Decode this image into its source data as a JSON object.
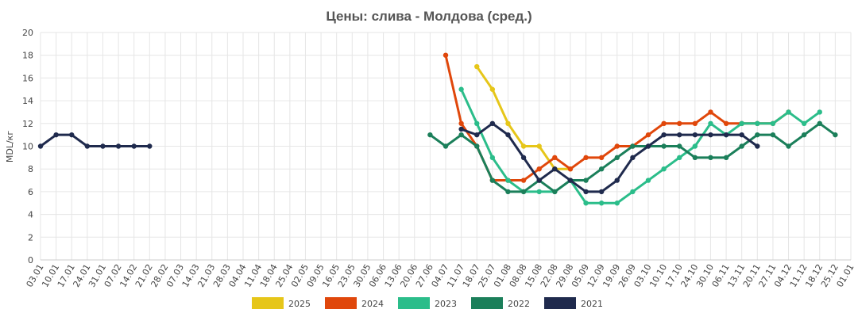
{
  "chart_data": {
    "type": "line",
    "title": "Цены: слива - Молдова (сред.)",
    "ylabel": "MDL/кг",
    "xlabel": "",
    "ylim": [
      0,
      20
    ],
    "y_ticks": [
      0,
      2,
      4,
      6,
      8,
      10,
      12,
      14,
      16,
      18,
      20
    ],
    "grid": true,
    "legend_position": "bottom",
    "x_ticks": [
      "03.01",
      "10.01",
      "17.01",
      "24.01",
      "31.01",
      "07.02",
      "14.02",
      "21.02",
      "28.02",
      "07.03",
      "14.03",
      "21.03",
      "28.03",
      "04.04",
      "11.04",
      "18.04",
      "25.04",
      "02.05",
      "09.05",
      "16.05",
      "23.05",
      "30.05",
      "06.06",
      "13.06",
      "20.06",
      "27.06",
      "04.07",
      "11.07",
      "18.07",
      "25.07",
      "01.08",
      "08.08",
      "15.08",
      "22.08",
      "29.08",
      "05.09",
      "12.09",
      "19.09",
      "26.09",
      "03.10",
      "10.10",
      "17.10",
      "24.10",
      "30.10",
      "06.11",
      "13.11",
      "20.11",
      "27.11",
      "04.12",
      "11.12",
      "18.12",
      "25.12",
      "01.01"
    ],
    "series": [
      {
        "name": "2025",
        "color": "#e6c619",
        "points": [
          [
            28,
            17
          ],
          [
            29,
            15
          ],
          [
            30,
            12
          ],
          [
            31,
            10
          ],
          [
            32,
            10
          ],
          [
            33,
            8
          ],
          [
            34,
            8
          ]
        ]
      },
      {
        "name": "2024",
        "color": "#e0470b",
        "points": [
          [
            26,
            18
          ],
          [
            27,
            12
          ],
          [
            28,
            10
          ],
          [
            29,
            7
          ],
          [
            30,
            7
          ],
          [
            31,
            7
          ],
          [
            32,
            8
          ],
          [
            33,
            9
          ],
          [
            34,
            8
          ],
          [
            35,
            9
          ],
          [
            36,
            9
          ],
          [
            37,
            10
          ],
          [
            38,
            10
          ],
          [
            39,
            11
          ],
          [
            40,
            12
          ],
          [
            41,
            12
          ],
          [
            42,
            12
          ],
          [
            43,
            13
          ],
          [
            44,
            12
          ],
          [
            45,
            12
          ],
          [
            46,
            12
          ],
          [
            47,
            12
          ],
          [
            48,
            13
          ]
        ]
      },
      {
        "name": "2023",
        "color": "#2bbd8a",
        "points": [
          [
            27,
            15
          ],
          [
            28,
            12
          ],
          [
            29,
            9
          ],
          [
            30,
            7
          ],
          [
            31,
            6
          ],
          [
            32,
            6
          ],
          [
            33,
            6
          ],
          [
            34,
            7
          ],
          [
            35,
            5
          ],
          [
            36,
            5
          ],
          [
            37,
            5
          ],
          [
            38,
            6
          ],
          [
            39,
            7
          ],
          [
            40,
            8
          ],
          [
            41,
            9
          ],
          [
            42,
            10
          ],
          [
            43,
            12
          ],
          [
            44,
            11
          ],
          [
            45,
            12
          ],
          [
            46,
            12
          ],
          [
            47,
            12
          ],
          [
            48,
            13
          ],
          [
            49,
            12
          ],
          [
            50,
            13
          ]
        ]
      },
      {
        "name": "2022",
        "color": "#1b7f5a",
        "points": [
          [
            25,
            11
          ],
          [
            26,
            10
          ],
          [
            27,
            11
          ],
          [
            28,
            10
          ],
          [
            29,
            7
          ],
          [
            30,
            6
          ],
          [
            31,
            6
          ],
          [
            32,
            7
          ],
          [
            33,
            6
          ],
          [
            34,
            7
          ],
          [
            35,
            7
          ],
          [
            36,
            8
          ],
          [
            37,
            9
          ],
          [
            38,
            10
          ],
          [
            39,
            10
          ],
          [
            40,
            10
          ],
          [
            41,
            10
          ],
          [
            42,
            9
          ],
          [
            43,
            9
          ],
          [
            44,
            9
          ],
          [
            45,
            10
          ],
          [
            46,
            11
          ],
          [
            47,
            11
          ],
          [
            48,
            10
          ],
          [
            49,
            11
          ],
          [
            50,
            12
          ],
          [
            51,
            11
          ]
        ]
      },
      {
        "name": "2021",
        "color": "#1f2a4d",
        "points": [
          [
            0,
            10
          ],
          [
            1,
            11
          ],
          [
            2,
            11
          ],
          [
            3,
            10
          ],
          [
            4,
            10
          ],
          [
            5,
            10
          ],
          [
            6,
            10
          ],
          [
            7,
            10
          ],
          [
            27,
            11.5
          ],
          [
            28,
            11
          ],
          [
            29,
            12
          ],
          [
            30,
            11
          ],
          [
            31,
            9
          ],
          [
            32,
            7
          ],
          [
            33,
            8
          ],
          [
            34,
            7
          ],
          [
            35,
            6
          ],
          [
            36,
            6
          ],
          [
            37,
            7
          ],
          [
            38,
            9
          ],
          [
            39,
            10
          ],
          [
            40,
            11
          ],
          [
            41,
            11
          ],
          [
            42,
            11
          ],
          [
            43,
            11
          ],
          [
            44,
            11
          ],
          [
            45,
            11
          ],
          [
            46,
            10
          ]
        ]
      }
    ]
  }
}
